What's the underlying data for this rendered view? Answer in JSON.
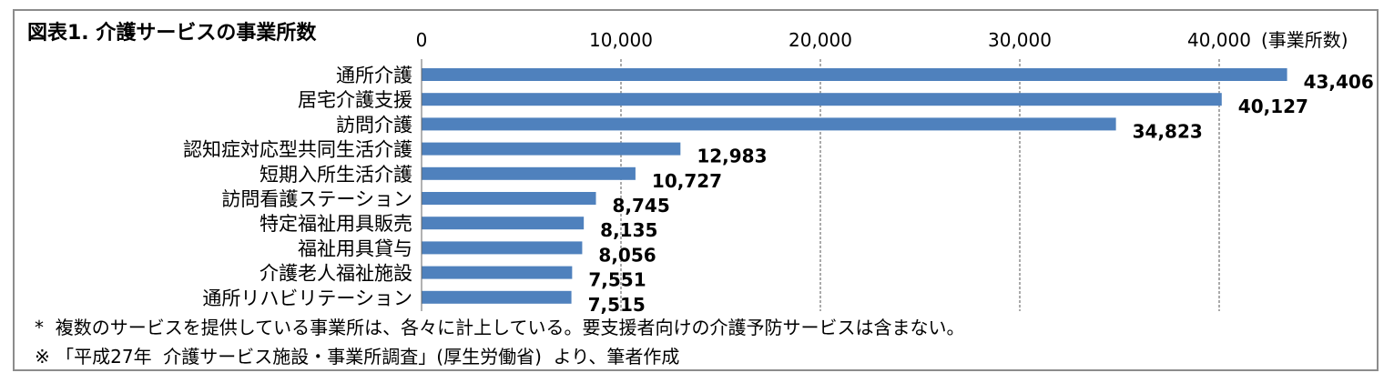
{
  "title": "図表1.  介護サービスの事業所数",
  "chart_data": {
    "type": "bar",
    "orientation": "horizontal",
    "title": "図表1.  介護サービスの事業所数",
    "unit_label": "(事業所数)",
    "xlim": [
      0,
      40000
    ],
    "ticks": [
      0,
      10000,
      20000,
      30000,
      40000
    ],
    "tick_labels": [
      "0",
      "10,000",
      "20,000",
      "30,000",
      "40,000"
    ],
    "grid": true,
    "bar_color": "#4f81bd",
    "categories": [
      "通所介護",
      "居宅介護支援",
      "訪問介護",
      "認知症対応型共同生活介護",
      "短期入所生活介護",
      "訪問看護ステーション",
      "特定福祉用具販売",
      "福祉用具貸与",
      "介護老人福祉施設",
      "通所リハビリテーション"
    ],
    "values": [
      43406,
      40127,
      34823,
      12983,
      10727,
      8745,
      8135,
      8056,
      7551,
      7515
    ],
    "value_labels": [
      "43,406",
      "40,127",
      "34,823",
      "12,983",
      "10,727",
      "8,745",
      "8,135",
      "8,056",
      "7,551",
      "7,515"
    ]
  },
  "notes": [
    "*  複数のサービスを提供している事業所は、各々に計上している。要支援者向けの介護予防サービスは含まない。",
    "※ 「平成27年  介護サービス施設・事業所調査」(厚生労働省)  より、筆者作成"
  ]
}
